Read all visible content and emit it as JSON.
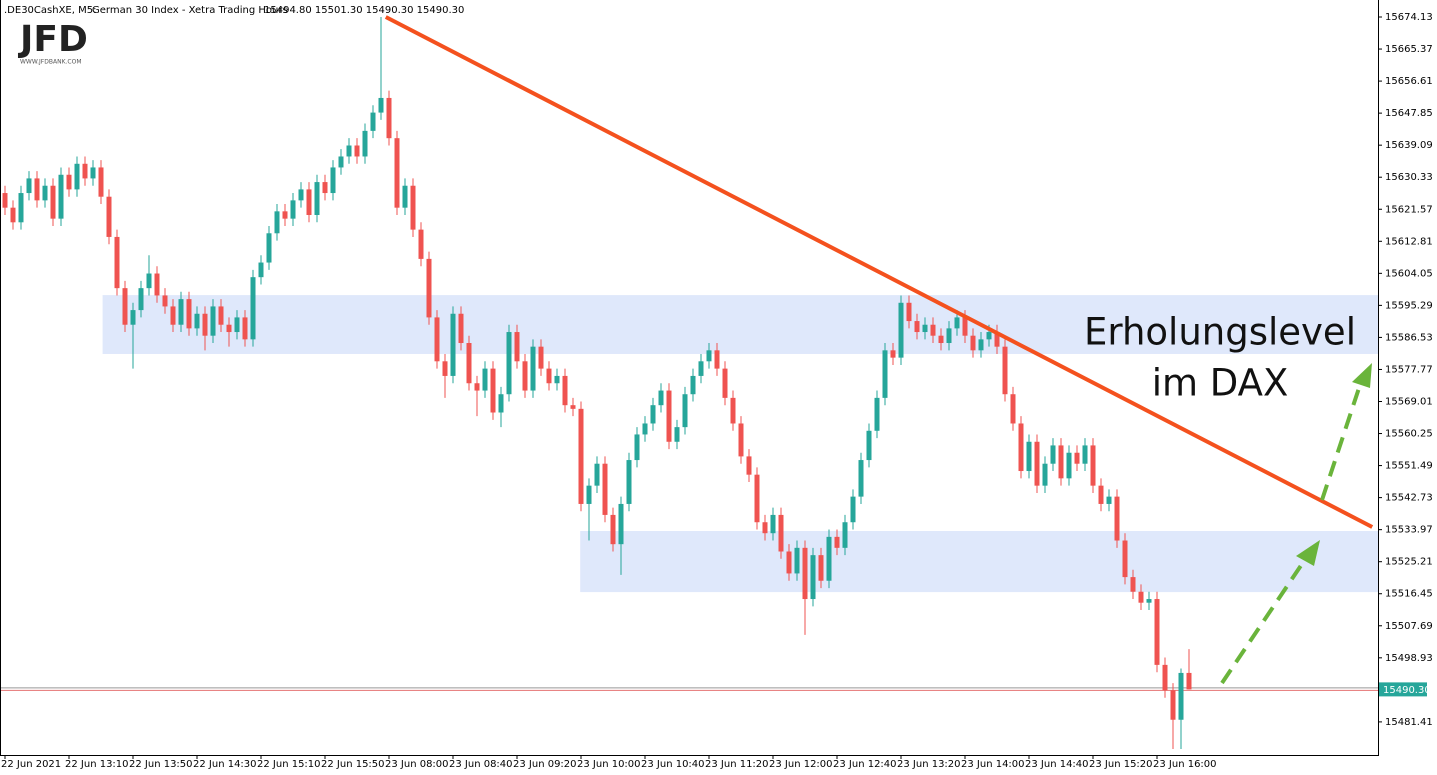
{
  "header": {
    "symbol": ".DE30CashXE, M5:",
    "description": "German 30 Index - Xetra Trading Hours",
    "quote": "15494.80 15501.30 15490.30 15490.30"
  },
  "logo": {
    "brand": "JFD",
    "site": "WWW.JFDBANK.COM"
  },
  "chart_data": {
    "type": "candlestick",
    "up_color": "#26a69a",
    "down_color": "#ef5350",
    "grid": false,
    "ylim": [
      15472.36,
      15678.78
    ],
    "yticks": [
      15674.13,
      15665.37,
      15656.61,
      15647.85,
      15639.09,
      15630.33,
      15621.57,
      15612.81,
      15604.05,
      15595.29,
      15586.53,
      15577.77,
      15569.01,
      15560.25,
      15551.49,
      15542.73,
      15533.97,
      15525.21,
      15516.45,
      15507.69,
      15498.93,
      15481.41
    ],
    "categories": [
      "22 Jun 2021",
      null,
      null,
      null,
      null,
      null,
      null,
      null,
      "22 Jun 13:10",
      null,
      null,
      null,
      null,
      null,
      null,
      null,
      "22 Jun 13:50",
      null,
      null,
      null,
      null,
      null,
      null,
      null,
      "22 Jun 14:30",
      null,
      null,
      null,
      null,
      null,
      null,
      null,
      "22 Jun 15:10",
      null,
      null,
      null,
      null,
      null,
      null,
      null,
      "22 Jun 15:50",
      null,
      null,
      null,
      null,
      null,
      null,
      null,
      "23 Jun 08:00",
      null,
      null,
      null,
      null,
      null,
      null,
      null,
      "23 Jun 08:40",
      null,
      null,
      null,
      null,
      null,
      null,
      null,
      "23 Jun 09:20",
      null,
      null,
      null,
      null,
      null,
      null,
      null,
      "23 Jun 10:00",
      null,
      null,
      null,
      null,
      null,
      null,
      null,
      "23 Jun 10:40",
      null,
      null,
      null,
      null,
      null,
      null,
      null,
      "23 Jun 11:20",
      null,
      null,
      null,
      null,
      null,
      null,
      null,
      "23 Jun 12:00",
      null,
      null,
      null,
      null,
      null,
      null,
      null,
      "23 Jun 12:40",
      null,
      null,
      null,
      null,
      null,
      null,
      null,
      "23 Jun 13:20",
      null,
      null,
      null,
      null,
      null,
      null,
      null,
      "23 Jun 14:00",
      null,
      null,
      null,
      null,
      null,
      null,
      null,
      "23 Jun 14:40",
      null,
      null,
      null,
      null,
      null,
      null,
      null,
      "23 Jun 15:20",
      null,
      null,
      null,
      null,
      null,
      null,
      null,
      "23 Jun 16:00",
      null,
      null,
      null,
      null
    ],
    "open": [
      15626,
      15622,
      15618,
      15626,
      15630,
      15624,
      15628,
      15619,
      15631,
      15627,
      15634,
      15630,
      15633,
      15625,
      15614,
      15600,
      15590,
      15594,
      15600,
      15604,
      15598,
      15595,
      15590,
      15597,
      15589,
      15593,
      15587,
      15595,
      15590,
      15588,
      15592,
      15586,
      15603,
      15607,
      15615,
      15621,
      15619,
      15624,
      15627,
      15620,
      15629,
      15626,
      15633,
      15636,
      15639,
      15636,
      15643,
      15648,
      15652,
      15641,
      15622,
      15628,
      15616,
      15608,
      15592,
      15580,
      15576,
      15593,
      15585,
      15574,
      15572,
      15578,
      15566,
      15571,
      15588,
      15580,
      15572,
      15584,
      15578,
      15574,
      15576,
      15568,
      15567,
      15541,
      15546,
      15552,
      15538,
      15530,
      15541,
      15553,
      15560,
      15563,
      15568,
      15572,
      15558,
      15562,
      15571,
      15576,
      15580,
      15583,
      15578,
      15570,
      15563,
      15554,
      15549,
      15536,
      15533,
      15538,
      15528,
      15522,
      15529,
      15515,
      15527,
      15520,
      15532,
      15529,
      15536,
      15543,
      15553,
      15561,
      15570,
      15583,
      15581,
      15596,
      15591,
      15588,
      15590,
      15587,
      15585,
      15589,
      15592,
      15587,
      15583,
      15586,
      15588,
      15584,
      15571,
      15563,
      15550,
      15558,
      15546,
      15552,
      15557,
      15548,
      15555,
      15552,
      15557,
      15546,
      15541,
      15543,
      15531,
      15521,
      15517,
      15514,
      15515,
      15497,
      15490,
      15482,
      15494.8
    ],
    "high": [
      15628,
      15624,
      15628,
      15632,
      15632,
      15630,
      15630,
      15633,
      15633,
      15636,
      15636,
      15635,
      15635,
      15627,
      15616,
      15602,
      15596,
      15602,
      15609,
      15606,
      15600,
      15597,
      15599,
      15599,
      15595,
      15595,
      15597,
      15597,
      15592,
      15594,
      15594,
      15605,
      15609,
      15617,
      15623,
      15623,
      15626,
      15629,
      15629,
      15631,
      15631,
      15635,
      15638,
      15641,
      15641,
      15645,
      15650,
      15674.13,
      15654,
      15643,
      15630,
      15630,
      15618,
      15610,
      15594,
      15582,
      15595,
      15595,
      15587,
      15576,
      15580,
      15580,
      15573,
      15590,
      15590,
      15582,
      15586,
      15586,
      15580,
      15578,
      15578,
      15570,
      15569,
      15548,
      15554,
      15554,
      15540,
      15543,
      15555,
      15562,
      15565,
      15570,
      15574,
      15574,
      15564,
      15573,
      15578,
      15582,
      15585,
      15585,
      15580,
      15572,
      15565,
      15556,
      15551,
      15538,
      15540,
      15540,
      15530,
      15531,
      15531,
      15529,
      15529,
      15534,
      15534,
      15538,
      15545,
      15555,
      15563,
      15572,
      15585,
      15585,
      15598,
      15598,
      15593,
      15592,
      15592,
      15589,
      15591,
      15594,
      15594,
      15589,
      15588,
      15590,
      15590,
      15586,
      15573,
      15565,
      15560,
      15560,
      15554,
      15559,
      15559,
      15557,
      15557,
      15559,
      15559,
      15548,
      15545,
      15545,
      15533,
      15523,
      15519,
      15517,
      15517,
      15499,
      15492,
      15496,
      15501.3
    ],
    "low": [
      15620,
      15616,
      15616,
      15624,
      15622,
      15622,
      15617,
      15617,
      15625,
      15625,
      15628,
      15628,
      15623,
      15612,
      15598,
      15588,
      15578,
      15592,
      15598,
      15596,
      15593,
      15588,
      15588,
      15587,
      15587,
      15583,
      15585,
      15588,
      15584,
      15586,
      15584,
      15584,
      15601,
      15605,
      15613,
      15617,
      15617,
      15622,
      15618,
      15618,
      15624,
      15624,
      15631,
      15634,
      15634,
      15634,
      15641,
      15646,
      15639,
      15620,
      15620,
      15614,
      15606,
      15590,
      15578,
      15570,
      15574,
      15583,
      15572,
      15565,
      15570,
      15564,
      15562,
      15569,
      15578,
      15570,
      15570,
      15576,
      15572,
      15572,
      15566,
      15565,
      15539,
      15531,
      15544,
      15536,
      15528,
      15521.6,
      15539,
      15551,
      15558,
      15561,
      15566,
      15556,
      15556,
      15560,
      15569,
      15574,
      15578,
      15576,
      15568,
      15561,
      15552,
      15547,
      15534,
      15531,
      15531,
      15526,
      15520,
      15520,
      15505.2,
      15513,
      15518,
      15518,
      15527,
      15527,
      15534,
      15541,
      15551,
      15559,
      15568,
      15579,
      15579,
      15589,
      15586,
      15586,
      15585,
      15583,
      15583,
      15587,
      15585,
      15581,
      15581,
      15584,
      15582,
      15569,
      15561,
      15548,
      15548,
      15544,
      15544,
      15550,
      15546,
      15546,
      15550,
      15550,
      15544,
      15539,
      15539,
      15529,
      15519,
      15515,
      15512,
      15512,
      15495,
      15488,
      15474,
      15474,
      15490.3
    ],
    "close": [
      15622,
      15618,
      15626,
      15630,
      15624,
      15628,
      15619,
      15631,
      15627,
      15634,
      15630,
      15633,
      15625,
      15614,
      15600,
      15590,
      15594,
      15600,
      15604,
      15598,
      15595,
      15590,
      15597,
      15589,
      15593,
      15587,
      15595,
      15590,
      15588,
      15592,
      15586,
      15603,
      15607,
      15615,
      15621,
      15619,
      15624,
      15627,
      15620,
      15629,
      15626,
      15633,
      15636,
      15639,
      15636,
      15643,
      15648,
      15652,
      15641,
      15622,
      15628,
      15616,
      15608,
      15592,
      15580,
      15576,
      15593,
      15585,
      15574,
      15572,
      15578,
      15566,
      15571,
      15588,
      15580,
      15572,
      15584,
      15578,
      15574,
      15576,
      15568,
      15567,
      15541,
      15546,
      15552,
      15538,
      15530,
      15541,
      15553,
      15560,
      15563,
      15568,
      15572,
      15558,
      15562,
      15571,
      15576,
      15580,
      15583,
      15578,
      15570,
      15563,
      15554,
      15549,
      15536,
      15533,
      15538,
      15528,
      15522,
      15529,
      15515,
      15527,
      15520,
      15532,
      15529,
      15536,
      15543,
      15553,
      15561,
      15570,
      15583,
      15581,
      15596,
      15591,
      15588,
      15590,
      15587,
      15585,
      15589,
      15592,
      15587,
      15583,
      15586,
      15588,
      15584,
      15571,
      15563,
      15550,
      15558,
      15546,
      15552,
      15557,
      15548,
      15555,
      15552,
      15557,
      15546,
      15541,
      15543,
      15531,
      15521,
      15517,
      15514,
      15515,
      15497,
      15490,
      15482,
      15494.8,
      15490.3
    ],
    "last_price": {
      "value": 15490.3,
      "label": "15490.30"
    },
    "zones": [
      {
        "x_start": 12.2,
        "y_range": [
          15582.0,
          15598.1
        ],
        "color": "#dfe8fb"
      },
      {
        "x_start": 71.9,
        "y_range": [
          15516.9,
          15533.6
        ],
        "color": "#dfe8fb"
      }
    ],
    "trendline": {
      "x": [
        47.6,
        170.9
      ],
      "y": [
        15674.13,
        15534.7
      ],
      "color": "#f4511e"
    },
    "annotation": [
      "Erholungslevel",
      "im DAX"
    ]
  }
}
